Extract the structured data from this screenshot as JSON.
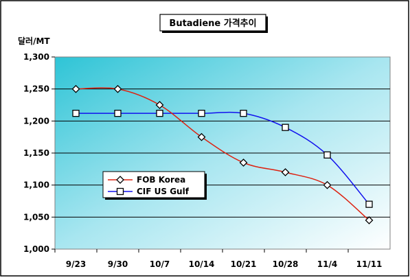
{
  "chart_data": {
    "type": "line",
    "title": "Butadiene 가격추이",
    "ylabel": "달러/MT",
    "xlabel": "",
    "categories": [
      "9/23",
      "9/30",
      "10/7",
      "10/14",
      "10/21",
      "10/28",
      "11/4",
      "11/11"
    ],
    "y_ticks": [
      "1,000",
      "1,050",
      "1,100",
      "1,150",
      "1,200",
      "1,250",
      "1,300"
    ],
    "ylim": [
      1000,
      1300
    ],
    "grid": "horizontal",
    "legend_position": "lower-left",
    "series": [
      {
        "name": "FOB Korea",
        "marker": "diamond",
        "color": "#dd2211",
        "values": [
          1250,
          1250,
          1225,
          1175,
          1135,
          1120,
          1100,
          1045
        ]
      },
      {
        "name": "CIF US Gulf",
        "marker": "square",
        "color": "#1111ee",
        "values": [
          1212,
          1212,
          1212,
          1212,
          1212,
          1190,
          1147,
          1070
        ]
      }
    ]
  }
}
